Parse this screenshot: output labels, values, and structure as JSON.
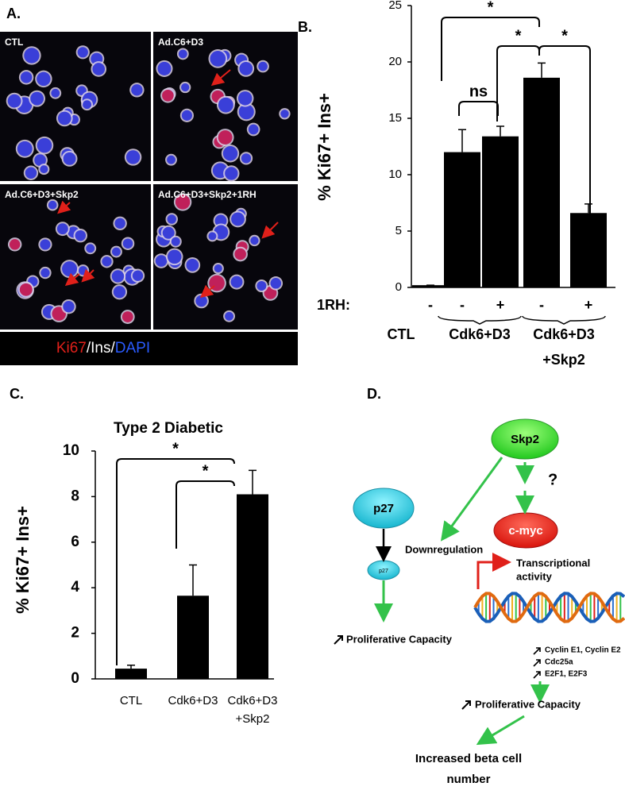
{
  "panel_a": {
    "label": "A.",
    "images": [
      "CTL",
      "Ad.C6+D3",
      "Ad.C6+D3+Skp2",
      "Ad.C6+D3+Skp2+1RH"
    ],
    "stain_legend": [
      "Ki67",
      "/Ins/",
      "DAPI"
    ]
  },
  "chart_data": [
    {
      "type": "bar",
      "panel_label": "B.",
      "y_label": "% Ki67+ Ins+",
      "category_title": "1RH:",
      "categories": [
        "-",
        "-",
        "+",
        "-",
        "+"
      ],
      "groups": [
        [
          "CTL"
        ],
        [
          "Cdk6+D3"
        ],
        [
          "Cdk6+D3",
          "+Skp2"
        ]
      ],
      "values": [
        0.2,
        12,
        13.4,
        18.6,
        6.6
      ],
      "errors": [
        0,
        2,
        0.9,
        1.3,
        0.8
      ],
      "color": "#000000",
      "ylim": [
        0,
        25
      ],
      "yticks": [
        0,
        5,
        10,
        15,
        20,
        25
      ],
      "annotations": [
        "*",
        "*",
        "*",
        "ns"
      ]
    },
    {
      "type": "bar",
      "panel_label": "C.",
      "title": "Type 2 Diabetic",
      "y_label": "% Ki67+ Ins+",
      "categories": [
        [
          "CTL"
        ],
        [
          "Cdk6+D3"
        ],
        [
          "Cdk6+D3",
          "+Skp2"
        ]
      ],
      "values": [
        0.45,
        3.65,
        8.1
      ],
      "errors": [
        0.15,
        1.35,
        1.05
      ],
      "color": "#000000",
      "ylim": [
        0,
        10
      ],
      "yticks": [
        0,
        2,
        4,
        6,
        8,
        10
      ],
      "annotations": [
        "*",
        "*"
      ]
    }
  ],
  "panel_d": {
    "label": "D.",
    "nodes": [
      "Skp2",
      "p27",
      "c-myc",
      "p27"
    ],
    "question": "?",
    "downregulation": "Downregulation",
    "transcription": [
      "Transcriptional",
      "activity"
    ],
    "targets": [
      "Cyclin E1, Cyclin E2",
      "Cdc25a",
      "E2F1, E2F3"
    ],
    "outcomes": [
      "Proliferative Capacity",
      "Proliferative Capacity"
    ],
    "result": [
      "Increased beta cell",
      "number"
    ]
  }
}
